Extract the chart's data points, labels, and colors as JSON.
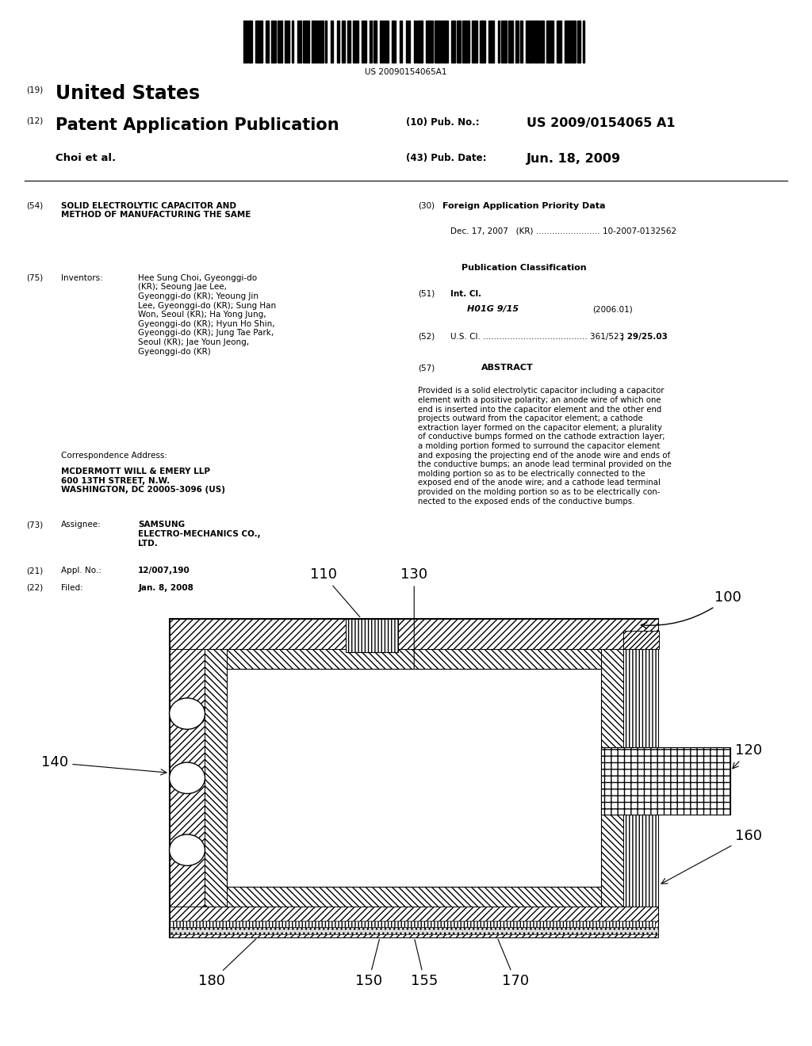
{
  "background_color": "#ffffff",
  "fig_width": 10.24,
  "fig_height": 13.2,
  "barcode_text": "US 20090154065A1",
  "title_19": "(19)",
  "title_country": "United States",
  "title_12": "(12)",
  "title_pub": "Patent Application Publication",
  "title_10": "(10) Pub. No.:",
  "pub_no": "US 2009/0154065 A1",
  "title_authors": "Choi et al.",
  "title_43": "(43) Pub. Date:",
  "pub_date": "Jun. 18, 2009",
  "field_54": "(54)",
  "field_54_title": "SOLID ELECTROLYTIC CAPACITOR AND\nMETHOD OF MANUFACTURING THE SAME",
  "field_75": "(75)",
  "field_75_label": "Inventors:",
  "field_75_text": "Hee Sung Choi, Gyeonggi-do\n(KR); Seoung Jae Lee,\nGyeonggi-do (KR); Yeoung Jin\nLee, Gyeonggi-do (KR); Sung Han\nWon, Seoul (KR); Ha Yong Jung,\nGyeonggi-do (KR); Hyun Ho Shin,\nGyeonggi-do (KR); Jung Tae Park,\nSeoul (KR); Jae Youn Jeong,\nGyeonggi-do (KR)",
  "corr_label": "Correspondence Address:",
  "corr_text": "MCDERMOTT WILL & EMERY LLP\n600 13TH STREET, N.W.\nWASHINGTON, DC 20005-3096 (US)",
  "field_73": "(73)",
  "field_73_label": "Assignee:",
  "field_73_text": "SAMSUNG\nELECTRO-MECHANICS CO.,\nLTD.",
  "field_21": "(21)",
  "field_21_label": "Appl. No.:",
  "field_21_text": "12/007,190",
  "field_22": "(22)",
  "field_22_label": "Filed:",
  "field_22_text": "Jan. 8, 2008",
  "field_30": "(30)",
  "field_30_title": "Foreign Application Priority Data",
  "field_30_text": "Dec. 17, 2007   (KR) ........................ 10-2007-0132562",
  "pub_class_title": "Publication Classification",
  "field_51": "(51)",
  "field_51_label": "Int. Cl.",
  "field_51_text": "H01G 9/15",
  "field_51_year": "(2006.01)",
  "field_52": "(52)",
  "field_52_label": "U.S. Cl. ....................................... 361/523",
  "field_52_text": "; 29/25.03",
  "field_57": "(57)",
  "field_57_label": "ABSTRACT",
  "abstract_text": "Provided is a solid electrolytic capacitor including a capacitor\nelement with a positive polarity; an anode wire of which one\nend is inserted into the capacitor element and the other end\nprojects outward from the capacitor element; a cathode\nextraction layer formed on the capacitor element; a plurality\nof conductive bumps formed on the cathode extraction layer;\na molding portion formed to surround the capacitor element\nand exposing the projecting end of the anode wire and ends of\nthe conductive bumps; an anode lead terminal provided on the\nmolding portion so as to be electrically connected to the\nexposed end of the anode wire; and a cathode lead terminal\nprovided on the molding portion so as to be electrically con-\nnected to the exposed ends of the conductive bumps."
}
